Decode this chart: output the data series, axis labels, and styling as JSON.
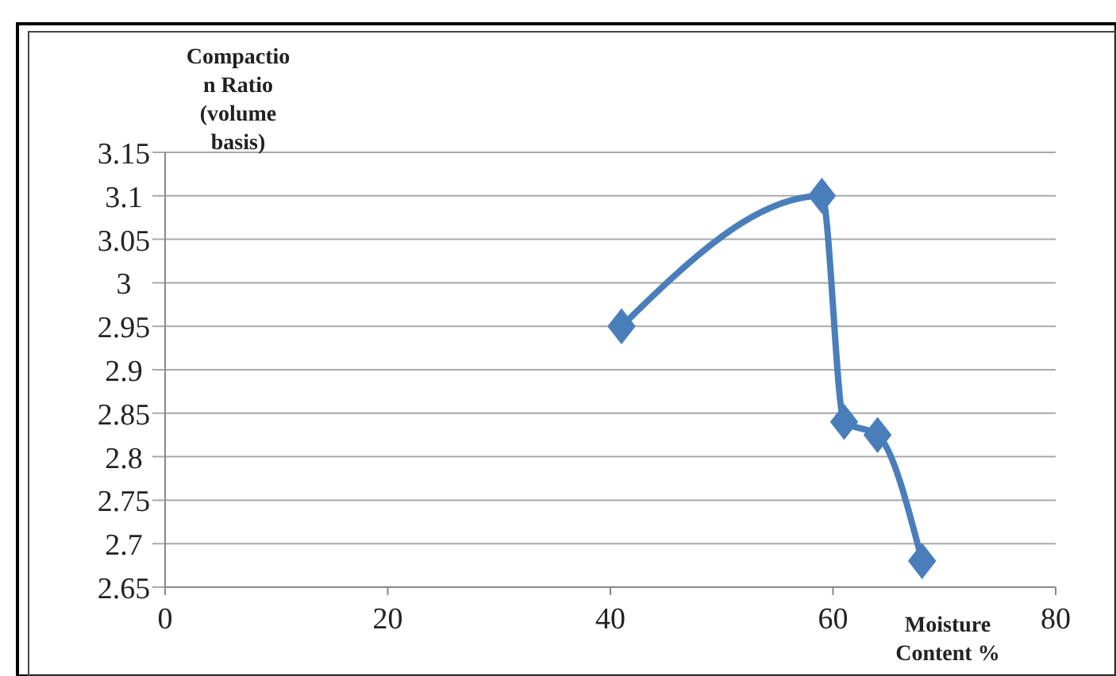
{
  "chart_data": {
    "type": "line",
    "xlabel": "Moisture Content %",
    "ylabel": "Compaction Ratio (volume basis)",
    "x": [
      41,
      59,
      61,
      64,
      68
    ],
    "series": [
      {
        "color": "#4a7ebb",
        "values": [
          2.95,
          3.1,
          2.84,
          2.825,
          2.68
        ]
      }
    ],
    "xlim": [
      0,
      80
    ],
    "xticks": [
      0,
      20,
      40,
      60,
      80
    ],
    "ylim": [
      2.65,
      3.15
    ],
    "yticks": [
      {
        "value": 2.65,
        "label": "2.65"
      },
      {
        "value": 2.7,
        "label": "2.7"
      },
      {
        "value": 2.75,
        "label": "2.75"
      },
      {
        "value": 2.8,
        "label": "2.8"
      },
      {
        "value": 2.85,
        "label": "2.85"
      },
      {
        "value": 2.9,
        "label": "2.9"
      },
      {
        "value": 2.95,
        "label": "2.95"
      },
      {
        "value": 3,
        "label": "3"
      },
      {
        "value": 3.05,
        "label": "3.05"
      },
      {
        "value": 3.1,
        "label": "3.1"
      },
      {
        "value": 3.15,
        "label": "3.15"
      }
    ],
    "grid": "y",
    "marker": "diamond",
    "line_style": "solid"
  }
}
